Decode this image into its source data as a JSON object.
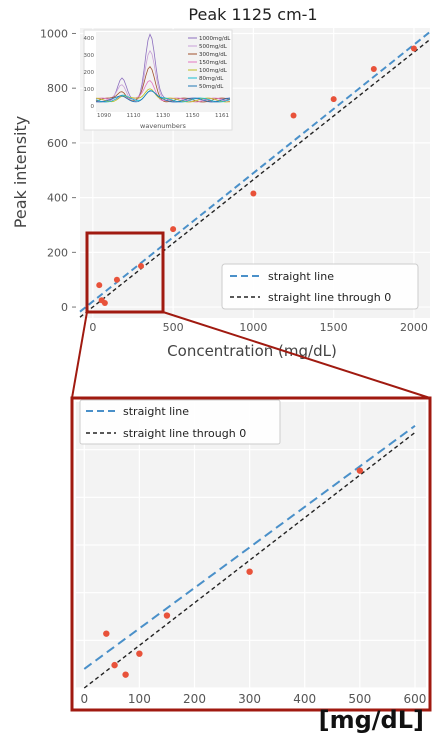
{
  "chart_data": [
    {
      "type": "scatter",
      "title": "Peak 1125 cm-1",
      "xlabel": "Concentration (mg/dL)",
      "ylabel": "Peak intensity",
      "xlim": [
        -80,
        2100
      ],
      "ylim": [
        -40,
        1020
      ],
      "x_ticks": [
        0,
        500,
        1000,
        1500,
        2000
      ],
      "y_ticks": [
        0,
        200,
        400,
        600,
        800,
        1000
      ],
      "grid": true,
      "legend_position": "lower-right",
      "series": [
        {
          "name": "straight line",
          "style": "dashed",
          "color": "#4a90c9",
          "x": [
            -80,
            2100
          ],
          "y": [
            -17,
            1006
          ]
        },
        {
          "name": "straight line through 0",
          "style": "dashed",
          "color": "#222222",
          "x": [
            -80,
            2100
          ],
          "y": [
            -37,
            978
          ]
        },
        {
          "name": "",
          "style": "points",
          "color": "#e8523a",
          "x": [
            40,
            55,
            75,
            150,
            300,
            500,
            1000,
            1250,
            1500,
            1750,
            2000
          ],
          "y": [
            80,
            25,
            15,
            100,
            150,
            285,
            415,
            700,
            760,
            870,
            945
          ]
        }
      ],
      "inset": {
        "xlabel": "wavenumbers",
        "x_ticks": [
          "1090",
          "1110",
          "1130",
          "1150",
          "1161"
        ],
        "y_ticks": [
          "400",
          "300",
          "200",
          "100",
          "0"
        ],
        "legend": [
          "1000mg/dL",
          "500mg/dL",
          "300mg/dL",
          "150mg/dL",
          "100mg/dL",
          "80mg/dL",
          "50mg/dL"
        ],
        "colors": [
          "#8d6fbf",
          "#c9a0d8",
          "#a0522d",
          "#e377c2",
          "#bcbd22",
          "#17becf",
          "#1f77b4"
        ],
        "peak_heights": [
          1.0,
          0.72,
          0.48,
          0.3,
          0.2,
          0.16,
          0.12
        ]
      }
    },
    {
      "type": "scatter",
      "title": "",
      "xlabel": "",
      "ylabel": "",
      "unit_label": "[mg/dL]",
      "xlim": [
        -15,
        620
      ],
      "ylim": [
        0,
        300
      ],
      "x_ticks": [
        0,
        100,
        200,
        300,
        400,
        500,
        600
      ],
      "grid": true,
      "legend_position": "top-left",
      "series": [
        {
          "name": "straight line",
          "style": "dashed",
          "color": "#4a90c9",
          "x": [
            0,
            600
          ],
          "y": [
            20,
            275
          ]
        },
        {
          "name": "straight line through 0",
          "style": "dashed",
          "color": "#222222",
          "x": [
            0,
            600
          ],
          "y": [
            0,
            268
          ]
        },
        {
          "name": "",
          "style": "points",
          "color": "#e8523a",
          "x": [
            40,
            55,
            75,
            100,
            150,
            300,
            500
          ],
          "y": [
            57,
            24,
            14,
            36,
            76,
            122,
            228
          ]
        }
      ]
    }
  ],
  "zoom_box": {
    "color": "#a01a10"
  }
}
